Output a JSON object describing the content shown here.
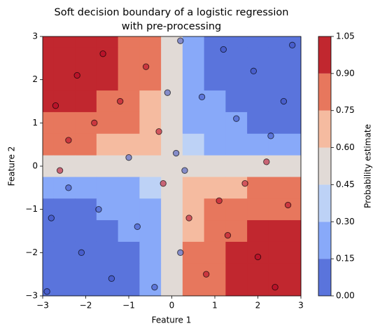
{
  "chart_data": {
    "type": "contour",
    "title": [
      "Soft decision boundary of a logistic regression",
      "with pre-processing"
    ],
    "x_label": "Feature 1",
    "y_label": "Feature 2",
    "colorbar_label": "Probability estimate",
    "xlim": [
      -3,
      3
    ],
    "ylim": [
      -3,
      3
    ],
    "xticks": [
      {
        "value": -3,
        "label": "−3"
      },
      {
        "value": -2,
        "label": "−2"
      },
      {
        "value": -1,
        "label": "−1"
      },
      0,
      1,
      2,
      3
    ],
    "yticks": [
      {
        "value": -3,
        "label": "−3"
      },
      {
        "value": -2,
        "label": "−2"
      },
      {
        "value": -1,
        "label": "−1"
      },
      0,
      1,
      2,
      3
    ],
    "levels": [
      {
        "value": 0,
        "label": "0.00"
      },
      {
        "value": 0.15,
        "label": "0.15"
      },
      {
        "value": 0.3,
        "label": "0.30"
      },
      {
        "value": 0.45,
        "label": "0.45"
      },
      {
        "value": 0.6,
        "label": "0.60"
      },
      {
        "value": 0.75,
        "label": "0.75"
      },
      {
        "value": 0.9,
        "label": "0.90"
      },
      {
        "value": 1.05,
        "label": "1.05"
      }
    ],
    "level_colors": [
      "#5a74dc",
      "#88a9f9",
      "#bdd2f6",
      "#e1dad6",
      "#f5bba0",
      "#e7775d",
      "#c1272f"
    ],
    "grid_x": [
      -3,
      -2.5,
      -2,
      -1.5,
      -1,
      -0.5,
      0,
      0.5,
      1,
      1.5,
      2,
      2.5,
      3
    ],
    "grid_y": [
      3,
      2.5,
      2,
      1.5,
      1,
      0.5,
      0,
      -0.5,
      -1,
      -1.5,
      -2,
      -2.5,
      -3
    ],
    "z": [
      [
        0.92,
        0.92,
        0.92,
        0.91,
        0.87,
        0.76,
        0.5,
        0.24,
        0.13,
        0.09,
        0.08,
        0.08,
        0.08
      ],
      [
        0.92,
        0.92,
        0.92,
        0.9,
        0.87,
        0.76,
        0.5,
        0.24,
        0.13,
        0.1,
        0.08,
        0.08,
        0.08
      ],
      [
        0.92,
        0.92,
        0.91,
        0.9,
        0.86,
        0.75,
        0.5,
        0.25,
        0.14,
        0.1,
        0.09,
        0.08,
        0.08
      ],
      [
        0.91,
        0.9,
        0.9,
        0.89,
        0.85,
        0.74,
        0.5,
        0.26,
        0.15,
        0.11,
        0.1,
        0.1,
        0.09
      ],
      [
        0.87,
        0.87,
        0.86,
        0.85,
        0.81,
        0.71,
        0.5,
        0.29,
        0.19,
        0.15,
        0.14,
        0.13,
        0.13
      ],
      [
        0.76,
        0.76,
        0.75,
        0.74,
        0.71,
        0.63,
        0.5,
        0.37,
        0.29,
        0.26,
        0.25,
        0.24,
        0.24
      ],
      [
        0.5,
        0.5,
        0.5,
        0.5,
        0.5,
        0.5,
        0.5,
        0.5,
        0.5,
        0.5,
        0.5,
        0.5,
        0.5
      ],
      [
        0.24,
        0.24,
        0.25,
        0.26,
        0.29,
        0.37,
        0.5,
        0.63,
        0.71,
        0.74,
        0.75,
        0.76,
        0.76
      ],
      [
        0.13,
        0.13,
        0.14,
        0.15,
        0.19,
        0.29,
        0.5,
        0.71,
        0.81,
        0.85,
        0.86,
        0.87,
        0.87
      ],
      [
        0.09,
        0.1,
        0.1,
        0.11,
        0.15,
        0.26,
        0.5,
        0.74,
        0.85,
        0.89,
        0.9,
        0.9,
        0.91
      ],
      [
        0.08,
        0.08,
        0.09,
        0.1,
        0.14,
        0.25,
        0.5,
        0.75,
        0.86,
        0.9,
        0.91,
        0.92,
        0.92
      ],
      [
        0.08,
        0.08,
        0.08,
        0.1,
        0.13,
        0.24,
        0.5,
        0.76,
        0.87,
        0.9,
        0.92,
        0.92,
        0.92
      ],
      [
        0.08,
        0.08,
        0.08,
        0.09,
        0.13,
        0.24,
        0.5,
        0.76,
        0.87,
        0.91,
        0.92,
        0.92,
        0.92
      ]
    ],
    "point_colors": [
      "#3b4cc0",
      "#b40426"
    ],
    "points": {
      "x": [
        -2.2,
        -1.6,
        -2.7,
        -1.2,
        -0.6,
        -2.4,
        -1.8,
        -0.3,
        1.9,
        2.6,
        1.2,
        0.7,
        2.3,
        1.5,
        0.2,
        2.8,
        -2.1,
        -2.8,
        -1.4,
        -0.8,
        -2.4,
        -1.7,
        -0.4,
        -2.9,
        2.0,
        1.3,
        2.7,
        0.8,
        1.7,
        2.4,
        0.4,
        1.1,
        0.1,
        -0.2,
        0.3,
        -0.1,
        0.2,
        -1.0,
        2.2,
        -2.6
      ],
      "y": [
        2.1,
        2.6,
        1.4,
        1.5,
        2.3,
        0.6,
        1.0,
        0.8,
        2.2,
        1.5,
        2.7,
        1.6,
        0.7,
        1.1,
        2.9,
        2.8,
        -2.0,
        -1.2,
        -2.6,
        -1.4,
        -0.5,
        -1.0,
        -2.8,
        -2.9,
        -2.1,
        -1.6,
        -0.9,
        -2.5,
        -0.4,
        -2.8,
        -1.2,
        -0.8,
        0.3,
        -0.4,
        -0.1,
        1.7,
        -2.0,
        0.2,
        0.1,
        -0.1
      ],
      "class": [
        1,
        1,
        1,
        1,
        1,
        1,
        1,
        1,
        0,
        0,
        0,
        0,
        0,
        0,
        0,
        0,
        0,
        0,
        0,
        0,
        0,
        0,
        0,
        0,
        1,
        1,
        1,
        1,
        1,
        1,
        1,
        1,
        0,
        1,
        0,
        0,
        0,
        0,
        1,
        1
      ]
    }
  }
}
